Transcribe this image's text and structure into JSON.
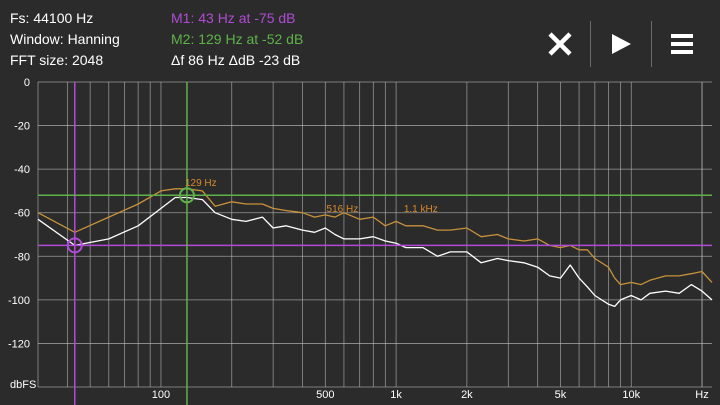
{
  "header": {
    "fs": "Fs: 44100 Hz",
    "window": "Window: Hanning",
    "fft_size": "FFT size: 2048",
    "marker1": "M1: 43 Hz at -75 dB",
    "marker2": "M2: 129 Hz at -52 dB",
    "delta": "Δf 86 Hz ΔdB -23 dB"
  },
  "toolbar": {
    "close": "close-icon",
    "play": "play-icon",
    "menu": "menu-icon"
  },
  "colors": {
    "background": "#2b2b2b",
    "grid": "#bdbdbd",
    "marker1": "#b04bd6",
    "marker2": "#5fb24a",
    "peak_trace": "#c8923a",
    "live_trace": "#ffffff",
    "peak_label": "#d98a2a"
  },
  "peak_labels": [
    "129 Hz",
    "516 Hz",
    "1.1 kHz"
  ],
  "chart_data": {
    "type": "line",
    "xscale": "log",
    "xlim": [
      30,
      22050
    ],
    "ylim": [
      -140,
      0
    ],
    "y_ticks": [
      0,
      -20,
      -40,
      -60,
      -80,
      -100,
      -120
    ],
    "y_tick_labels": [
      "0",
      "-20",
      "-40",
      "-60",
      "-80",
      "-100",
      "-120"
    ],
    "y_unit": "dbFS",
    "x_ticks": [
      100,
      500,
      1000,
      2000,
      5000,
      10000
    ],
    "x_tick_labels": [
      "100",
      "500",
      "1k",
      "2k",
      "5k",
      "10k"
    ],
    "x_unit": "Hz",
    "grid": true,
    "markers": [
      {
        "name": "M1",
        "freq": 43,
        "level": -75
      },
      {
        "name": "M2",
        "freq": 129,
        "level": -52
      }
    ],
    "series": [
      {
        "x": [
          30,
          43,
          60,
          80,
          100,
          115,
          129,
          150,
          170,
          200,
          230,
          270,
          300,
          340,
          400,
          450,
          500,
          550,
          600,
          700,
          800,
          900,
          1000,
          1100,
          1300,
          1500,
          1700,
          2000,
          2300,
          2700,
          3000,
          3500,
          4000,
          4500,
          5000,
          5500,
          6000,
          6500,
          7000,
          8000,
          8500,
          9000,
          10000,
          11000,
          12000,
          14000,
          16000,
          18000,
          20000,
          22050
        ],
        "y": [
          -60,
          -69,
          -62,
          -56,
          -50,
          -49,
          -49,
          -50,
          -57,
          -55,
          -56,
          -56,
          -58,
          -59,
          -60,
          -62,
          -61,
          -62,
          -60,
          -63,
          -62,
          -66,
          -64,
          -66,
          -66,
          -68,
          -68,
          -67,
          -71,
          -70,
          -72,
          -73,
          -72,
          -75,
          -76,
          -75,
          -77,
          -77,
          -81,
          -85,
          -90,
          -93,
          -92,
          -93,
          -91,
          -89,
          -89,
          -88,
          -87,
          -92
        ]
      },
      {
        "x": [
          30,
          43,
          60,
          80,
          100,
          115,
          129,
          150,
          170,
          200,
          230,
          270,
          300,
          340,
          400,
          450,
          500,
          550,
          600,
          700,
          800,
          900,
          1000,
          1100,
          1300,
          1500,
          1700,
          2000,
          2300,
          2700,
          3000,
          3500,
          4000,
          4500,
          5000,
          5500,
          6000,
          6500,
          7000,
          8000,
          8500,
          9000,
          10000,
          11000,
          12000,
          14000,
          16000,
          18000,
          20000,
          22050
        ],
        "y": [
          -63,
          -75,
          -72,
          -66,
          -58,
          -53,
          -53,
          -54,
          -60,
          -63,
          -64,
          -62,
          -67,
          -66,
          -68,
          -69,
          -67,
          -70,
          -72,
          -72,
          -71,
          -73,
          -74,
          -76,
          -76,
          -80,
          -78,
          -78,
          -83,
          -81,
          -82,
          -83,
          -85,
          -89,
          -90,
          -84,
          -90,
          -94,
          -98,
          -102,
          -103,
          -100,
          -98,
          -100,
          -97,
          -96,
          -97,
          -93,
          -96,
          -100
        ]
      }
    ]
  }
}
